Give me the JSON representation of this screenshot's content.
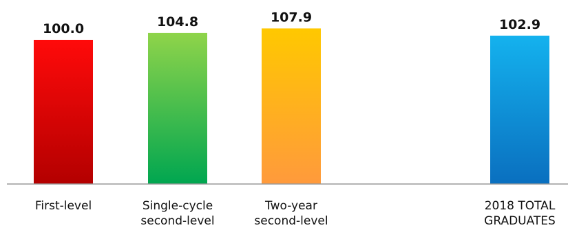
{
  "chart_data": {
    "type": "bar",
    "categories": [
      [
        "First-level"
      ],
      [
        "Single-cycle",
        "second-level"
      ],
      [
        "Two-year",
        "second-level"
      ],
      [
        "2018 TOTAL",
        "GRADUATES"
      ]
    ],
    "values": [
      100.0,
      104.8,
      107.9,
      102.9
    ],
    "value_labels": [
      "100.0",
      "104.8",
      "107.9",
      "102.9"
    ],
    "colors": [
      [
        "#ff0a0a",
        "#b30000"
      ],
      [
        "#8fd44a",
        "#00a650"
      ],
      [
        "#ffc800",
        "#ff9a3c"
      ],
      [
        "#14b2ee",
        "#0a6fbf"
      ]
    ],
    "axis_color": "#999999",
    "grid": false
  }
}
